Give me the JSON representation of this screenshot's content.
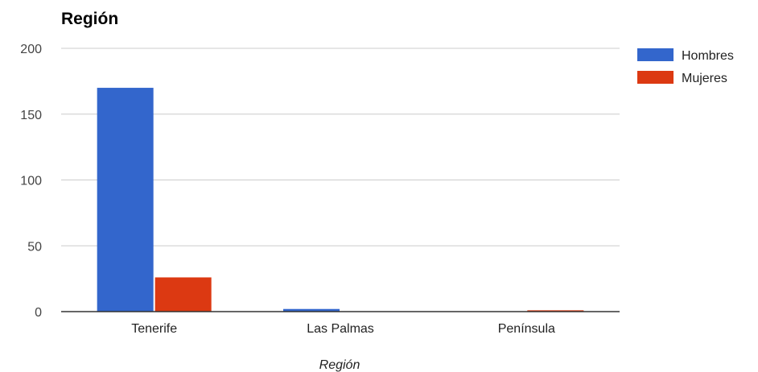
{
  "chart_data": {
    "type": "bar",
    "title": "Región",
    "xlabel": "Región",
    "ylabel": "",
    "categories": [
      "Tenerife",
      "Las Palmas",
      "Península"
    ],
    "series": [
      {
        "name": "Hombres",
        "values": [
          170,
          2,
          0
        ],
        "color": "#3366cc"
      },
      {
        "name": "Mujeres",
        "values": [
          26,
          0,
          1
        ],
        "color": "#dc3912"
      }
    ],
    "ylim": [
      0,
      200
    ],
    "yticks": [
      0,
      50,
      100,
      150,
      200
    ],
    "grid": true,
    "legend_position": "right"
  }
}
